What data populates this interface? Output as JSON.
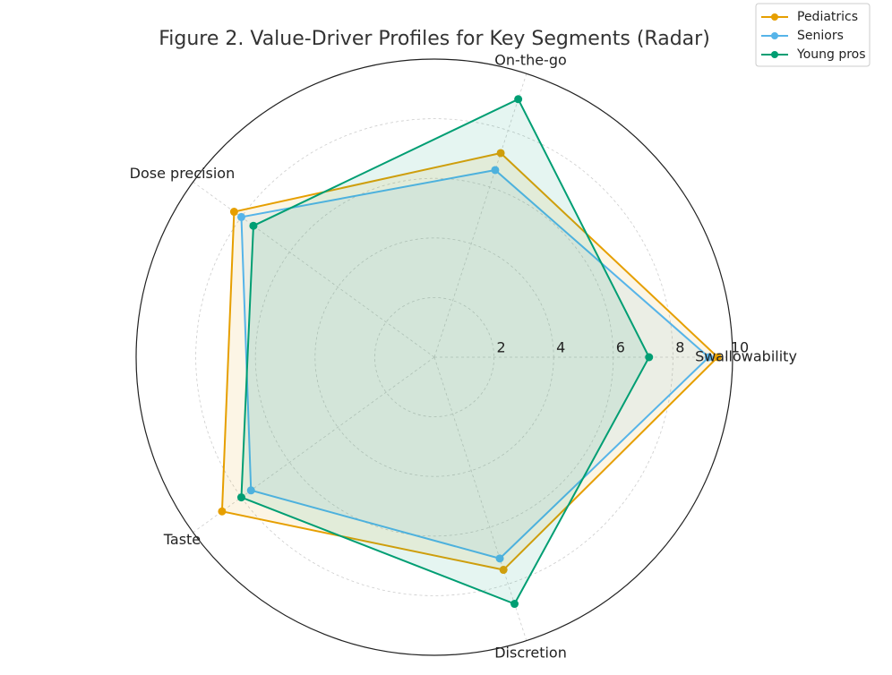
{
  "chart_data": {
    "type": "radar",
    "title": "Figure 2. Value-Driver Profiles for Key Segments (Radar)",
    "categories": [
      "Swallowability",
      "On-the-go",
      "Dose precision",
      "Taste",
      "Discretion"
    ],
    "series": [
      {
        "name": "Pediatrics",
        "color": "#E69F00",
        "values": [
          9.5,
          7.2,
          8.3,
          8.8,
          7.5
        ]
      },
      {
        "name": "Seniors",
        "color": "#56B4E9",
        "values": [
          9.2,
          6.6,
          8.0,
          7.6,
          7.1
        ]
      },
      {
        "name": "Young pros",
        "color": "#009E73",
        "values": [
          7.2,
          9.1,
          7.5,
          8.0,
          8.7
        ]
      }
    ],
    "rlim": [
      0,
      10
    ],
    "rticks": [
      2,
      4,
      6,
      8,
      10
    ],
    "grid": true,
    "legend": "upper right"
  }
}
